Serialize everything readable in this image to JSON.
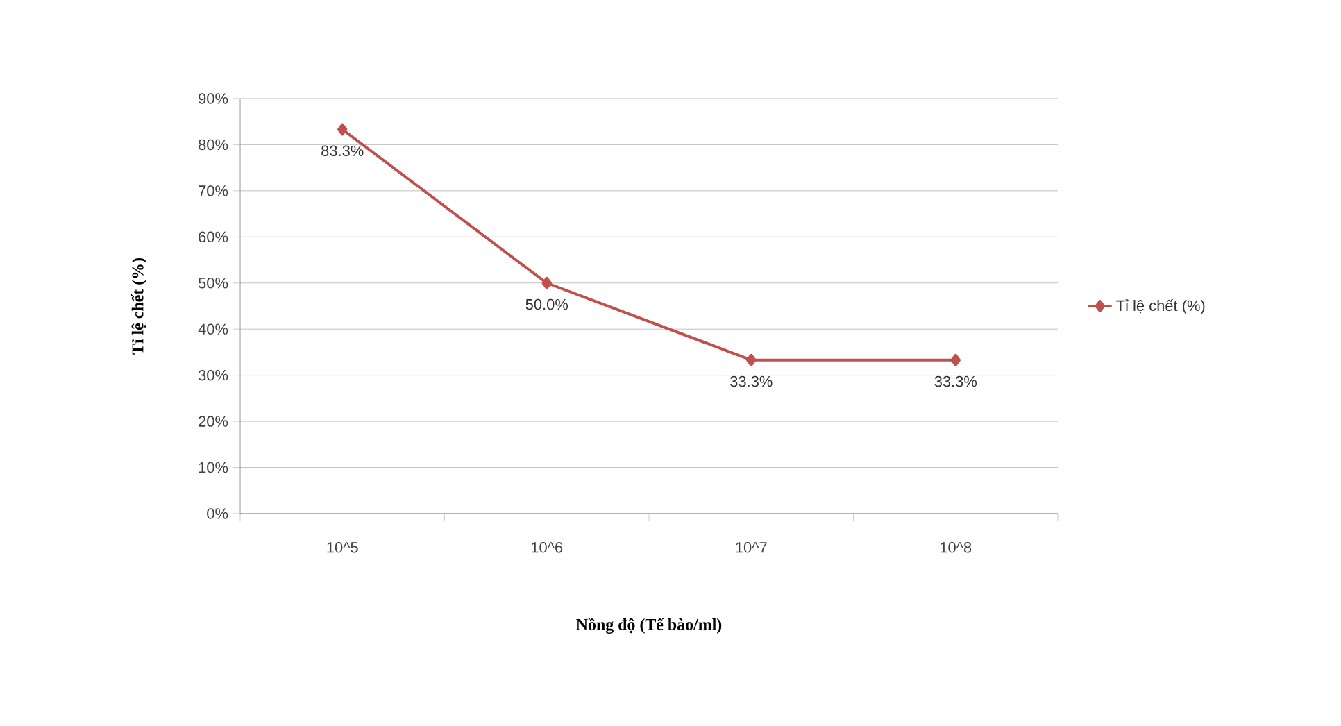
{
  "chart_data": {
    "type": "line",
    "xlabel": "Nồng độ (Tế bào/ml)",
    "ylabel": "Tỉ lệ chết (%)",
    "categories": [
      "10^5",
      "10^6",
      "10^7",
      "10^8"
    ],
    "series": [
      {
        "name": "Tỉ lệ chết (%)",
        "color": "#c0504d",
        "values": [
          83.3,
          50.0,
          33.3,
          33.3
        ],
        "value_labels": [
          "83.3%",
          "50.0%",
          "33.3%",
          "33.3%"
        ]
      }
    ],
    "ylim": [
      0,
      90
    ],
    "yticks": [
      {
        "value": 0,
        "label": "0%"
      },
      {
        "value": 10,
        "label": "10%"
      },
      {
        "value": 20,
        "label": "20%"
      },
      {
        "value": 30,
        "label": "30%"
      },
      {
        "value": 40,
        "label": "40%"
      },
      {
        "value": 50,
        "label": "50%"
      },
      {
        "value": 60,
        "label": "60%"
      },
      {
        "value": 70,
        "label": "70%"
      },
      {
        "value": 80,
        "label": "80%"
      },
      {
        "value": 90,
        "label": "90%"
      }
    ],
    "grid": "y",
    "legend": "right",
    "marker": "diamond",
    "line_style": "solid"
  }
}
